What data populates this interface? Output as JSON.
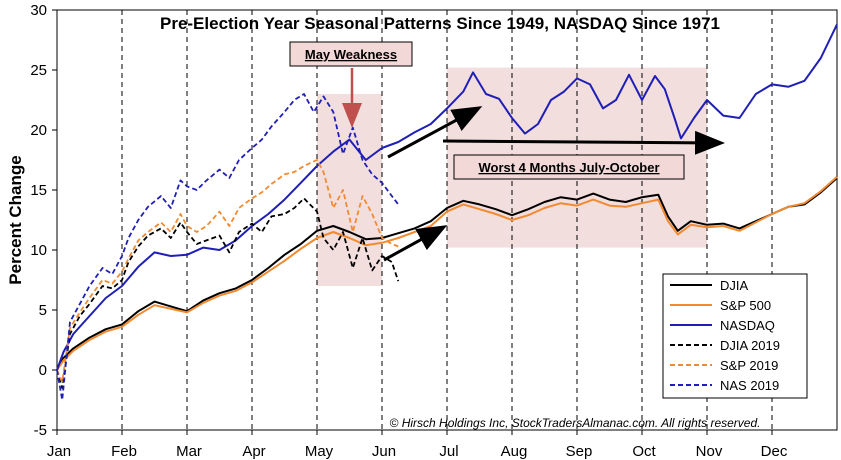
{
  "chart_data": {
    "type": "line",
    "title": "Pre-Election Year Seasonal Patterns Since 1949, NASDAQ Since 1971",
    "xlabel": "",
    "ylabel": "Percent Change",
    "ylim": [
      -5,
      30
    ],
    "yticks": [
      -5,
      0,
      5,
      10,
      15,
      20,
      25,
      30
    ],
    "xlim": [
      0,
      12
    ],
    "x_ticks": [
      {
        "label": "Jan",
        "x": 0
      },
      {
        "label": "Feb",
        "x": 1
      },
      {
        "label": "Mar",
        "x": 2
      },
      {
        "label": "Apr",
        "x": 3
      },
      {
        "label": "May",
        "x": 4
      },
      {
        "label": "Jun",
        "x": 5
      },
      {
        "label": "Jul",
        "x": 6
      },
      {
        "label": "Aug",
        "x": 7
      },
      {
        "label": "Sep",
        "x": 8
      },
      {
        "label": "Oct",
        "x": 9
      },
      {
        "label": "Nov",
        "x": 10
      },
      {
        "label": "Dec",
        "x": 11
      }
    ],
    "grid": "vertical dashed at month boundaries",
    "series": [
      {
        "name": "DJIA",
        "color": "#000000",
        "style": "solid",
        "points": [
          [
            0,
            0
          ],
          [
            0.1,
            1.0
          ],
          [
            0.25,
            1.8
          ],
          [
            0.5,
            2.7
          ],
          [
            0.75,
            3.4
          ],
          [
            1.0,
            3.8
          ],
          [
            1.25,
            4.9
          ],
          [
            1.5,
            5.7
          ],
          [
            1.75,
            5.3
          ],
          [
            2.0,
            4.9
          ],
          [
            2.25,
            5.8
          ],
          [
            2.5,
            6.4
          ],
          [
            2.75,
            6.8
          ],
          [
            3.0,
            7.5
          ],
          [
            3.25,
            8.5
          ],
          [
            3.5,
            9.6
          ],
          [
            3.75,
            10.5
          ],
          [
            4.0,
            11.6
          ],
          [
            4.25,
            12.0
          ],
          [
            4.5,
            11.5
          ],
          [
            4.75,
            10.9
          ],
          [
            5.0,
            11.0
          ],
          [
            5.25,
            11.4
          ],
          [
            5.5,
            11.8
          ],
          [
            5.75,
            12.4
          ],
          [
            6.0,
            13.5
          ],
          [
            6.25,
            14.1
          ],
          [
            6.5,
            13.8
          ],
          [
            6.75,
            13.4
          ],
          [
            7.0,
            12.9
          ],
          [
            7.25,
            13.4
          ],
          [
            7.5,
            14.0
          ],
          [
            7.75,
            14.4
          ],
          [
            8.0,
            14.2
          ],
          [
            8.25,
            14.7
          ],
          [
            8.5,
            14.2
          ],
          [
            8.75,
            14.0
          ],
          [
            9.0,
            14.4
          ],
          [
            9.25,
            14.6
          ],
          [
            9.4,
            12.8
          ],
          [
            9.55,
            11.6
          ],
          [
            9.75,
            12.4
          ],
          [
            10.0,
            12.1
          ],
          [
            10.25,
            12.2
          ],
          [
            10.5,
            11.8
          ],
          [
            10.75,
            12.4
          ],
          [
            11.0,
            13.0
          ],
          [
            11.25,
            13.6
          ],
          [
            11.5,
            13.8
          ],
          [
            11.75,
            14.8
          ],
          [
            12.0,
            16.0
          ]
        ]
      },
      {
        "name": "S&P 500",
        "color": "#f28a30",
        "style": "solid",
        "points": [
          [
            0,
            0
          ],
          [
            0.1,
            0.8
          ],
          [
            0.25,
            1.6
          ],
          [
            0.5,
            2.5
          ],
          [
            0.75,
            3.2
          ],
          [
            1.0,
            3.6
          ],
          [
            1.25,
            4.6
          ],
          [
            1.5,
            5.4
          ],
          [
            1.75,
            5.1
          ],
          [
            2.0,
            4.8
          ],
          [
            2.25,
            5.6
          ],
          [
            2.5,
            6.2
          ],
          [
            2.75,
            6.6
          ],
          [
            3.0,
            7.3
          ],
          [
            3.25,
            8.2
          ],
          [
            3.5,
            9.1
          ],
          [
            3.75,
            10.1
          ],
          [
            4.0,
            11.0
          ],
          [
            4.25,
            11.5
          ],
          [
            4.5,
            11.0
          ],
          [
            4.75,
            10.4
          ],
          [
            5.0,
            10.6
          ],
          [
            5.25,
            11.0
          ],
          [
            5.5,
            11.5
          ],
          [
            5.75,
            12.0
          ],
          [
            6.0,
            13.2
          ],
          [
            6.25,
            13.8
          ],
          [
            6.5,
            13.4
          ],
          [
            6.75,
            13.0
          ],
          [
            7.0,
            12.5
          ],
          [
            7.25,
            12.9
          ],
          [
            7.5,
            13.5
          ],
          [
            7.75,
            13.9
          ],
          [
            8.0,
            13.7
          ],
          [
            8.25,
            14.2
          ],
          [
            8.5,
            13.7
          ],
          [
            8.75,
            13.6
          ],
          [
            9.0,
            13.9
          ],
          [
            9.25,
            14.2
          ],
          [
            9.4,
            12.4
          ],
          [
            9.55,
            11.3
          ],
          [
            9.75,
            12.1
          ],
          [
            10.0,
            11.9
          ],
          [
            10.25,
            12.0
          ],
          [
            10.5,
            11.6
          ],
          [
            10.75,
            12.3
          ],
          [
            11.0,
            13.0
          ],
          [
            11.25,
            13.6
          ],
          [
            11.5,
            13.9
          ],
          [
            11.75,
            14.9
          ],
          [
            12.0,
            16.1
          ]
        ]
      },
      {
        "name": "NASDAQ",
        "color": "#1f1fb8",
        "style": "solid",
        "points": [
          [
            0,
            0
          ],
          [
            0.1,
            1.5
          ],
          [
            0.25,
            3.0
          ],
          [
            0.5,
            4.5
          ],
          [
            0.75,
            6.0
          ],
          [
            1.0,
            7.0
          ],
          [
            1.25,
            8.6
          ],
          [
            1.5,
            9.8
          ],
          [
            1.75,
            9.5
          ],
          [
            2.0,
            9.6
          ],
          [
            2.25,
            10.2
          ],
          [
            2.5,
            10.0
          ],
          [
            2.75,
            10.8
          ],
          [
            3.0,
            12.0
          ],
          [
            3.25,
            13.0
          ],
          [
            3.5,
            14.2
          ],
          [
            3.75,
            15.6
          ],
          [
            4.0,
            17.0
          ],
          [
            4.25,
            18.2
          ],
          [
            4.5,
            19.2
          ],
          [
            4.75,
            17.5
          ],
          [
            5.0,
            18.5
          ],
          [
            5.25,
            19.0
          ],
          [
            5.5,
            19.8
          ],
          [
            5.75,
            20.5
          ],
          [
            6.0,
            21.8
          ],
          [
            6.25,
            23.2
          ],
          [
            6.4,
            24.8
          ],
          [
            6.6,
            23.0
          ],
          [
            6.8,
            22.6
          ],
          [
            7.0,
            21.0
          ],
          [
            7.2,
            19.7
          ],
          [
            7.4,
            20.5
          ],
          [
            7.6,
            22.5
          ],
          [
            7.8,
            23.2
          ],
          [
            8.0,
            24.3
          ],
          [
            8.2,
            23.8
          ],
          [
            8.4,
            21.8
          ],
          [
            8.6,
            22.5
          ],
          [
            8.8,
            24.6
          ],
          [
            9.0,
            22.5
          ],
          [
            9.2,
            24.5
          ],
          [
            9.35,
            23.4
          ],
          [
            9.5,
            21.0
          ],
          [
            9.6,
            19.3
          ],
          [
            9.8,
            21.0
          ],
          [
            10.0,
            22.5
          ],
          [
            10.25,
            21.2
          ],
          [
            10.5,
            21.0
          ],
          [
            10.75,
            23.0
          ],
          [
            11.0,
            23.8
          ],
          [
            11.25,
            23.6
          ],
          [
            11.5,
            24.1
          ],
          [
            11.75,
            26.0
          ],
          [
            12.0,
            28.8
          ]
        ]
      },
      {
        "name": "DJIA 2019",
        "color": "#000000",
        "style": "dashed",
        "points": [
          [
            0,
            0
          ],
          [
            0.08,
            -1.5
          ],
          [
            0.2,
            3.0
          ],
          [
            0.35,
            4.5
          ],
          [
            0.5,
            5.5
          ],
          [
            0.7,
            7.0
          ],
          [
            0.85,
            6.8
          ],
          [
            1.0,
            7.5
          ],
          [
            1.1,
            9.0
          ],
          [
            1.25,
            10.3
          ],
          [
            1.4,
            11.2
          ],
          [
            1.6,
            11.8
          ],
          [
            1.75,
            11.0
          ],
          [
            1.9,
            12.3
          ],
          [
            2.0,
            11.5
          ],
          [
            2.15,
            10.5
          ],
          [
            2.3,
            10.8
          ],
          [
            2.5,
            11.2
          ],
          [
            2.65,
            9.8
          ],
          [
            2.8,
            11.5
          ],
          [
            3.0,
            12.2
          ],
          [
            3.15,
            11.5
          ],
          [
            3.3,
            12.8
          ],
          [
            3.5,
            13.0
          ],
          [
            3.65,
            13.5
          ],
          [
            3.8,
            14.3
          ],
          [
            4.0,
            13.2
          ],
          [
            4.1,
            11.0
          ],
          [
            4.25,
            10.0
          ],
          [
            4.4,
            11.5
          ],
          [
            4.55,
            8.5
          ],
          [
            4.7,
            11.0
          ],
          [
            4.85,
            8.3
          ],
          [
            5.0,
            9.5
          ],
          [
            5.15,
            9.0
          ],
          [
            5.25,
            7.4
          ]
        ]
      },
      {
        "name": "S&P 2019",
        "color": "#f28a30",
        "style": "dashed",
        "points": [
          [
            0,
            0
          ],
          [
            0.08,
            -1.0
          ],
          [
            0.2,
            3.5
          ],
          [
            0.35,
            4.8
          ],
          [
            0.5,
            6.0
          ],
          [
            0.7,
            7.5
          ],
          [
            0.85,
            7.2
          ],
          [
            1.0,
            8.2
          ],
          [
            1.1,
            9.3
          ],
          [
            1.25,
            10.8
          ],
          [
            1.4,
            11.5
          ],
          [
            1.6,
            12.3
          ],
          [
            1.75,
            11.5
          ],
          [
            1.9,
            13.0
          ],
          [
            2.0,
            12.0
          ],
          [
            2.15,
            11.5
          ],
          [
            2.3,
            12.0
          ],
          [
            2.5,
            13.2
          ],
          [
            2.65,
            12.0
          ],
          [
            2.8,
            13.5
          ],
          [
            3.0,
            14.3
          ],
          [
            3.15,
            14.8
          ],
          [
            3.3,
            15.5
          ],
          [
            3.5,
            16.3
          ],
          [
            3.65,
            16.5
          ],
          [
            3.8,
            17.0
          ],
          [
            4.0,
            17.5
          ],
          [
            4.1,
            16.5
          ],
          [
            4.25,
            13.5
          ],
          [
            4.4,
            15.0
          ],
          [
            4.55,
            11.5
          ],
          [
            4.7,
            14.5
          ],
          [
            4.85,
            13.0
          ],
          [
            5.0,
            11.0
          ],
          [
            5.15,
            10.5
          ],
          [
            5.25,
            10.3
          ]
        ]
      },
      {
        "name": "NAS 2019",
        "color": "#1f1fb8",
        "style": "dashed",
        "points": [
          [
            0,
            0
          ],
          [
            0.08,
            -2.5
          ],
          [
            0.2,
            4.0
          ],
          [
            0.35,
            5.5
          ],
          [
            0.5,
            7.0
          ],
          [
            0.7,
            8.5
          ],
          [
            0.85,
            8.0
          ],
          [
            1.0,
            9.5
          ],
          [
            1.1,
            11.0
          ],
          [
            1.25,
            12.5
          ],
          [
            1.4,
            13.6
          ],
          [
            1.6,
            14.5
          ],
          [
            1.75,
            13.5
          ],
          [
            1.9,
            15.8
          ],
          [
            2.0,
            15.3
          ],
          [
            2.15,
            15.0
          ],
          [
            2.3,
            15.8
          ],
          [
            2.5,
            16.7
          ],
          [
            2.65,
            16.0
          ],
          [
            2.8,
            17.5
          ],
          [
            3.0,
            18.5
          ],
          [
            3.15,
            19.2
          ],
          [
            3.3,
            20.3
          ],
          [
            3.5,
            21.5
          ],
          [
            3.65,
            22.5
          ],
          [
            3.8,
            23.0
          ],
          [
            3.95,
            21.5
          ],
          [
            4.1,
            22.8
          ],
          [
            4.25,
            21.5
          ],
          [
            4.4,
            18.0
          ],
          [
            4.55,
            20.2
          ],
          [
            4.7,
            17.5
          ],
          [
            4.85,
            16.3
          ],
          [
            5.0,
            15.6
          ],
          [
            5.15,
            14.5
          ],
          [
            5.25,
            13.8
          ]
        ]
      }
    ],
    "legend": {
      "position": "bottom-right",
      "entries": [
        "DJIA",
        "S&P 500",
        "NASDAQ",
        "DJIA 2019",
        "S&P 2019",
        "NAS 2019"
      ]
    },
    "annotations": {
      "may_box_label": "May Weakness",
      "jul_oct_box_label": "Worst 4 Months July-October",
      "copyright": "© Hirsch Holdings Inc, StockTradersAlmanac.com. All rights reserved.",
      "may_region": [
        4.0,
        5.0
      ],
      "jul_oct_region": [
        6.0,
        10.0
      ],
      "region_ylim": [
        7,
        23
      ]
    }
  }
}
